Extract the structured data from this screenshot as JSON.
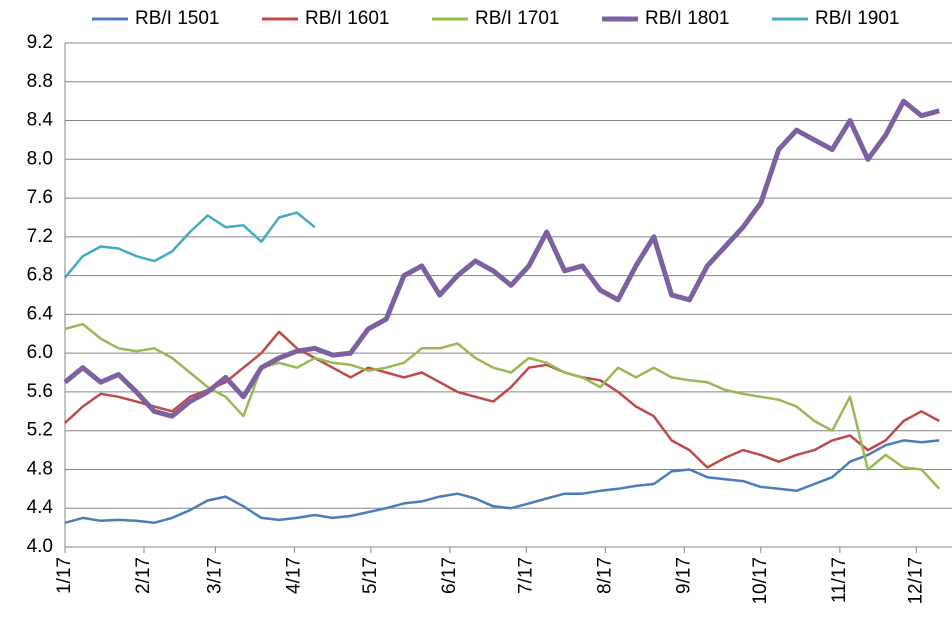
{
  "chart_data": {
    "type": "line",
    "x": [
      0,
      7,
      14,
      21,
      28,
      35,
      42,
      49,
      56,
      63,
      70,
      77,
      84,
      91,
      98,
      105,
      112,
      119,
      126,
      133,
      140,
      147,
      154,
      161,
      168,
      175,
      182,
      189,
      196,
      203,
      210,
      217,
      224,
      231,
      238,
      245,
      252,
      259,
      266,
      273,
      280,
      287,
      294,
      301,
      308,
      315,
      322,
      329,
      336,
      343
    ],
    "xlim": [
      0,
      348
    ],
    "xticks": [
      {
        "value": 0,
        "label": "1/17"
      },
      {
        "value": 31,
        "label": "2/17"
      },
      {
        "value": 59,
        "label": "3/17"
      },
      {
        "value": 90,
        "label": "4/17"
      },
      {
        "value": 120,
        "label": "5/17"
      },
      {
        "value": 151,
        "label": "6/17"
      },
      {
        "value": 181,
        "label": "7/17"
      },
      {
        "value": 212,
        "label": "8/17"
      },
      {
        "value": 243,
        "label": "9/17"
      },
      {
        "value": 273,
        "label": "10/17"
      },
      {
        "value": 304,
        "label": "11/17"
      },
      {
        "value": 334,
        "label": "12/17"
      }
    ],
    "ylim": [
      4.0,
      9.2
    ],
    "yticks": [
      {
        "value": 4.0,
        "label": "4.0"
      },
      {
        "value": 4.4,
        "label": "4.4"
      },
      {
        "value": 4.8,
        "label": "4.8"
      },
      {
        "value": 5.2,
        "label": "5.2"
      },
      {
        "value": 5.6,
        "label": "5.6"
      },
      {
        "value": 6.0,
        "label": "6.0"
      },
      {
        "value": 6.4,
        "label": "6.4"
      },
      {
        "value": 6.8,
        "label": "6.8"
      },
      {
        "value": 7.2,
        "label": "7.2"
      },
      {
        "value": 7.6,
        "label": "7.6"
      },
      {
        "value": 8.0,
        "label": "8.0"
      },
      {
        "value": 8.4,
        "label": "8.4"
      },
      {
        "value": 8.8,
        "label": "8.8"
      },
      {
        "value": 9.2,
        "label": "9.2"
      }
    ],
    "grid": true,
    "series": [
      {
        "name": "RB/I 1501",
        "color": "#4a7ebb",
        "values": [
          4.25,
          4.3,
          4.27,
          4.28,
          4.27,
          4.25,
          4.3,
          4.38,
          4.48,
          4.52,
          4.42,
          4.3,
          4.28,
          4.3,
          4.33,
          4.3,
          4.32,
          4.36,
          4.4,
          4.45,
          4.47,
          4.52,
          4.55,
          4.5,
          4.42,
          4.4,
          4.45,
          4.5,
          4.55,
          4.55,
          4.58,
          4.6,
          4.63,
          4.65,
          4.78,
          4.8,
          4.72,
          4.7,
          4.68,
          4.62,
          4.6,
          4.58,
          4.65,
          4.72,
          4.88,
          4.95,
          5.05,
          5.1,
          5.08,
          5.1
        ]
      },
      {
        "name": "RB/I 1601",
        "color": "#be4b48",
        "values": [
          5.28,
          5.45,
          5.58,
          5.55,
          5.5,
          5.45,
          5.4,
          5.55,
          5.62,
          5.7,
          5.85,
          6.0,
          6.22,
          6.05,
          5.95,
          5.85,
          5.75,
          5.85,
          5.8,
          5.75,
          5.8,
          5.7,
          5.6,
          5.55,
          5.5,
          5.65,
          5.85,
          5.88,
          5.8,
          5.75,
          5.72,
          5.6,
          5.45,
          5.35,
          5.1,
          5.0,
          4.82,
          4.92,
          5.0,
          4.95,
          4.88,
          4.95,
          5.0,
          5.1,
          5.15,
          5.0,
          5.1,
          5.3,
          5.4,
          5.3
        ]
      },
      {
        "name": "RB/I 1701",
        "color": "#98b954",
        "values": [
          6.25,
          6.3,
          6.15,
          6.05,
          6.02,
          6.05,
          5.95,
          5.8,
          5.65,
          5.55,
          5.35,
          5.85,
          5.9,
          5.85,
          5.95,
          5.9,
          5.88,
          5.82,
          5.85,
          5.9,
          6.05,
          6.05,
          6.1,
          5.95,
          5.85,
          5.8,
          5.95,
          5.9,
          5.8,
          5.75,
          5.65,
          5.85,
          5.75,
          5.85,
          5.75,
          5.72,
          5.7,
          5.62,
          5.58,
          5.55,
          5.52,
          5.45,
          5.3,
          5.2,
          5.55,
          4.8,
          4.95,
          4.82,
          4.8,
          4.6
        ]
      },
      {
        "name": "RB/I 1801",
        "color": "#7d60a0",
        "values": [
          5.7,
          5.85,
          5.7,
          5.78,
          5.6,
          5.4,
          5.35,
          5.5,
          5.6,
          5.75,
          5.55,
          5.85,
          5.95,
          6.02,
          6.05,
          5.98,
          6.0,
          6.25,
          6.35,
          6.8,
          6.9,
          6.6,
          6.8,
          6.95,
          6.85,
          6.7,
          6.9,
          7.25,
          6.85,
          6.9,
          6.65,
          6.55,
          6.9,
          7.2,
          6.6,
          6.55,
          6.9,
          7.1,
          7.3,
          7.55,
          8.1,
          8.3,
          8.2,
          8.1,
          8.4,
          8.0,
          8.25,
          8.6,
          8.45,
          8.5
        ]
      },
      {
        "name": "RB/I 1901",
        "color": "#46aac5",
        "values": [
          6.78,
          7.0,
          7.1,
          7.08,
          7.0,
          6.95,
          7.05,
          7.25,
          7.42,
          7.3,
          7.32,
          7.15,
          7.4,
          7.45,
          7.3,
          null,
          null,
          null,
          null,
          null,
          null,
          null,
          null,
          null,
          null,
          null,
          null,
          null,
          null,
          null,
          null,
          null,
          null,
          null,
          null,
          null,
          null,
          null,
          null,
          null,
          null,
          null,
          null,
          null,
          null,
          null,
          null,
          null,
          null,
          null
        ]
      }
    ]
  }
}
